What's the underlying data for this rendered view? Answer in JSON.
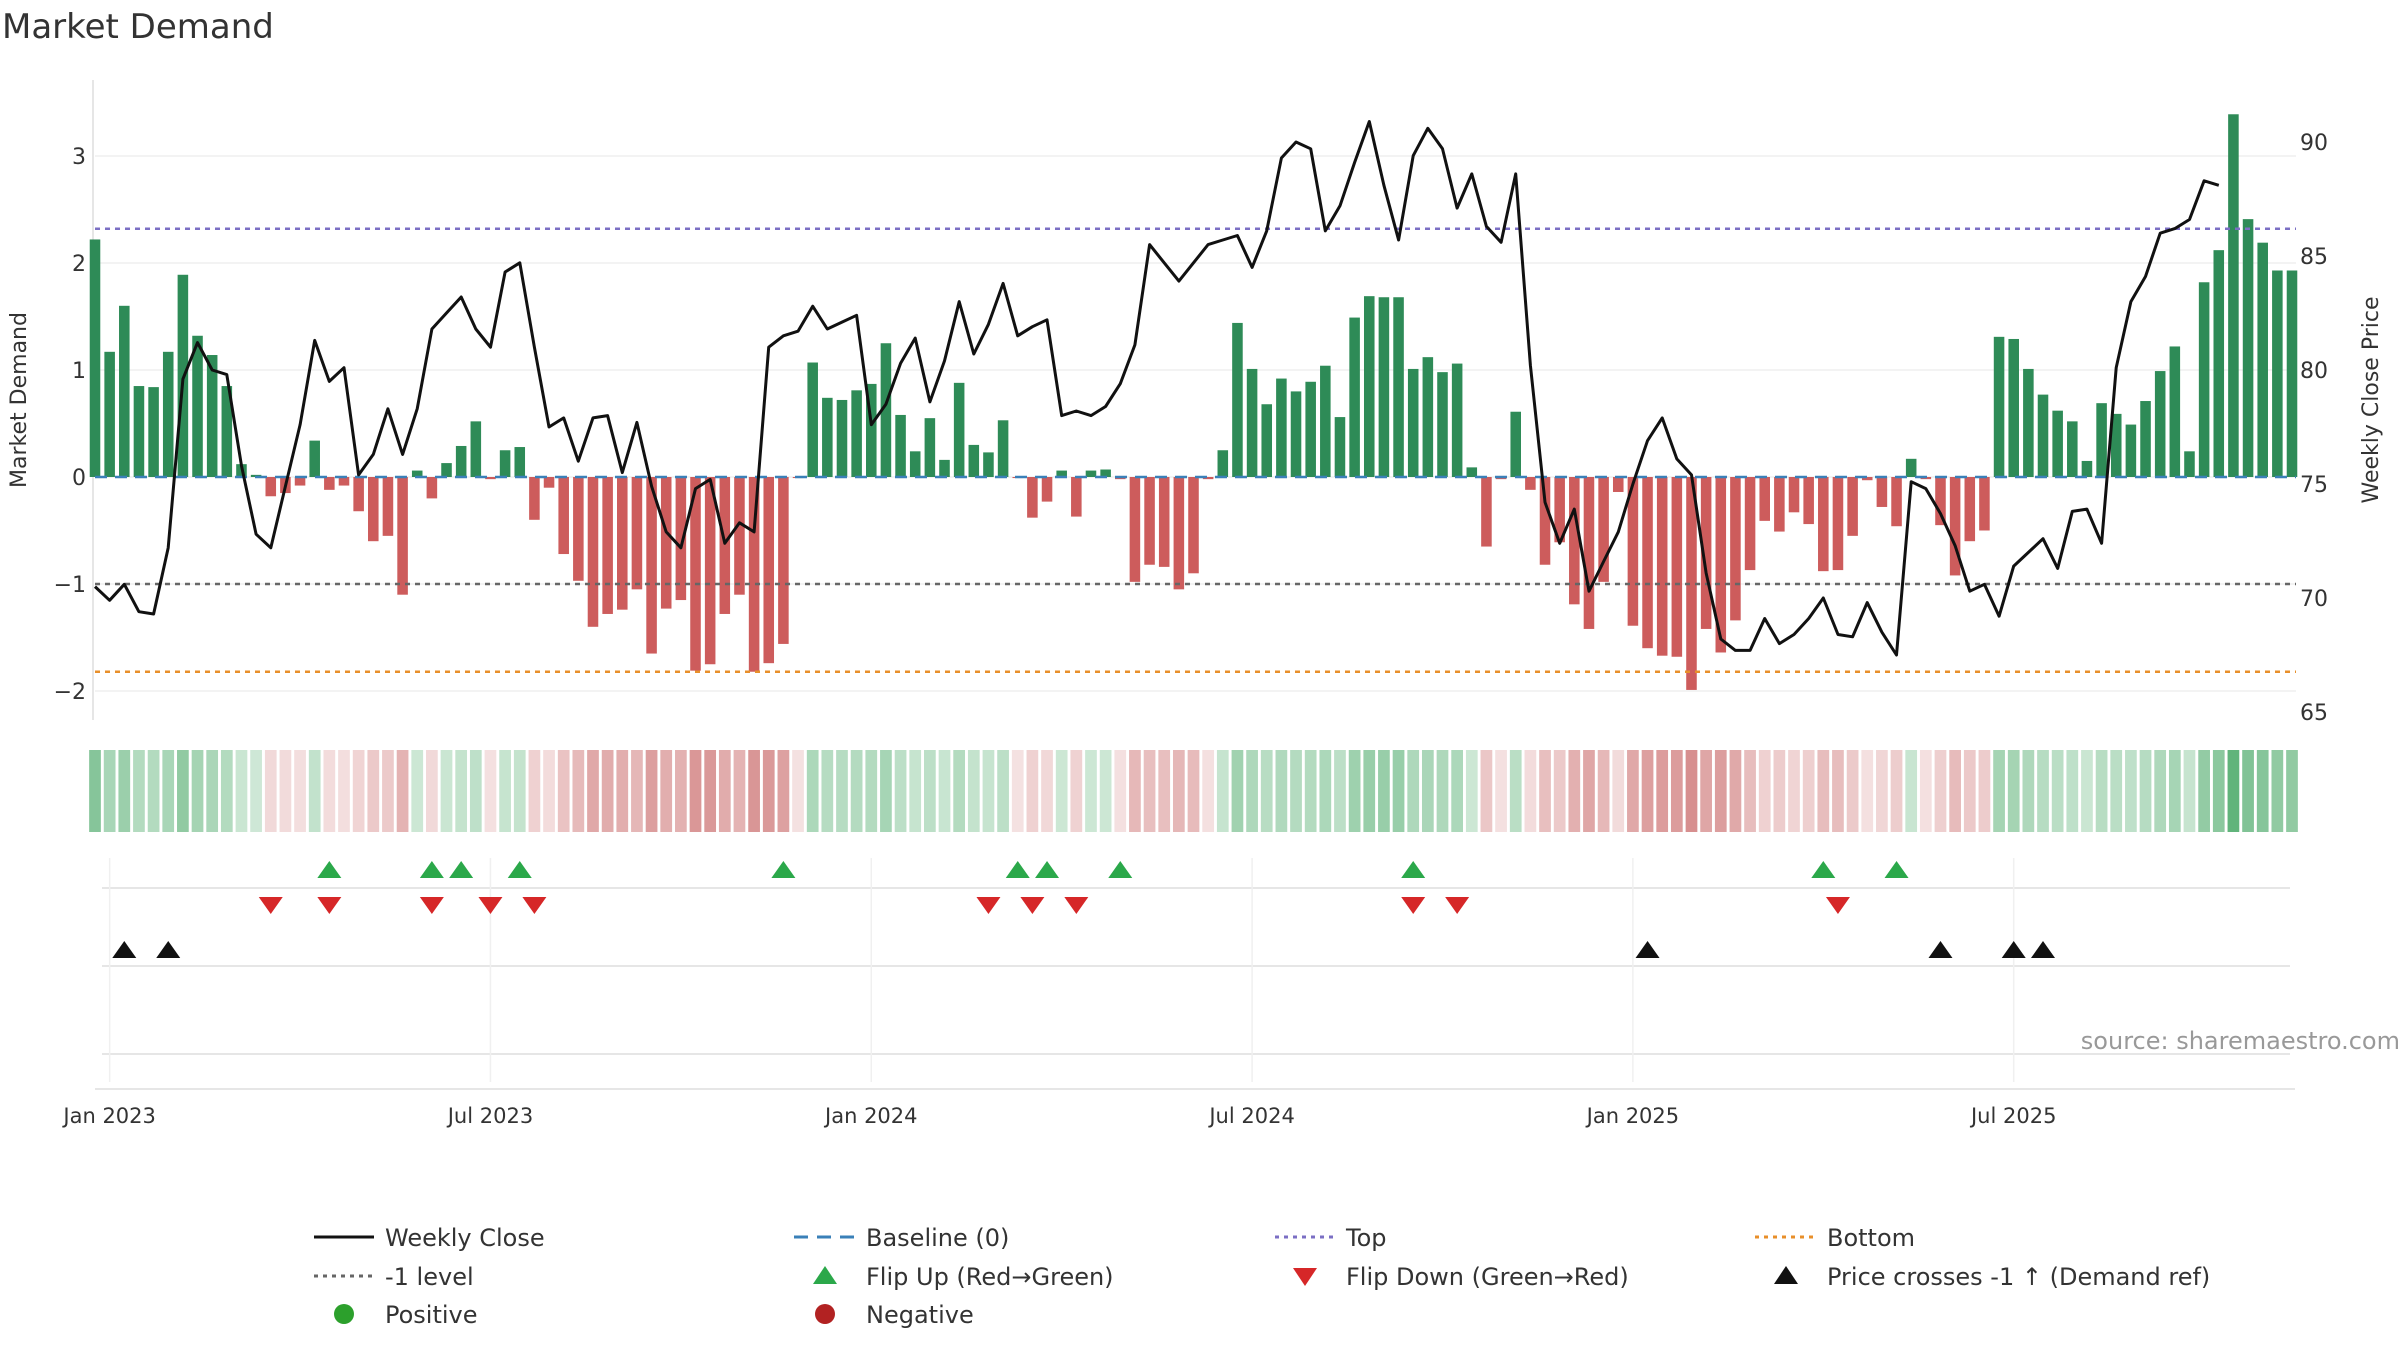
{
  "chart_data": {
    "type": "bar",
    "title": "Market Demand",
    "ylabel_left": "Market Demand",
    "ylabel_right": "Weekly Close Price",
    "ylim_left": [
      -2.3,
      3.5
    ],
    "ylim_right": [
      65,
      92
    ],
    "yticks_left": [
      "−2",
      "−1",
      "0",
      "1",
      "2",
      "3"
    ],
    "yticks_left_values": [
      -2,
      -1,
      0,
      1,
      2,
      3
    ],
    "yticks_right": [
      "65",
      "70",
      "75",
      "80",
      "85",
      "90"
    ],
    "yticks_right_values": [
      65,
      70,
      75,
      80,
      85,
      90
    ],
    "x_ticks": [
      {
        "label": "Jan 2023",
        "week": 1
      },
      {
        "label": "Jul 2023",
        "week": 27
      },
      {
        "label": "Jan 2024",
        "week": 53
      },
      {
        "label": "Jul 2024",
        "week": 79
      },
      {
        "label": "Jan 2025",
        "week": 105
      },
      {
        "label": "Jul 2025",
        "week": 131
      }
    ],
    "series": [
      {
        "name": "Market Demand",
        "type": "bar",
        "values": [
          2.22,
          1.17,
          1.6,
          0.85,
          0.84,
          1.17,
          1.89,
          1.32,
          1.14,
          0.85,
          0.12,
          0.02,
          -0.18,
          -0.15,
          -0.08,
          0.34,
          -0.12,
          -0.08,
          -0.32,
          -0.6,
          -0.55,
          -1.1,
          0.06,
          -0.2,
          0.13,
          0.29,
          0.52,
          -0.02,
          0.25,
          0.28,
          -0.4,
          -0.1,
          -0.72,
          -0.97,
          -1.4,
          -1.28,
          -1.24,
          -1.05,
          -1.65,
          -1.23,
          -1.15,
          -1.81,
          -1.75,
          -1.28,
          -1.1,
          -1.82,
          -1.74,
          -1.56,
          -0.01,
          1.07,
          0.74,
          0.72,
          0.81,
          0.87,
          1.25,
          0.58,
          0.24,
          0.55,
          0.16,
          0.88,
          0.3,
          0.23,
          0.53,
          -0.01,
          -0.38,
          -0.23,
          0.06,
          -0.37,
          0.06,
          0.07,
          -0.02,
          -0.98,
          -0.82,
          -0.84,
          -1.05,
          -0.9,
          -0.02,
          0.25,
          1.44,
          1.01,
          0.68,
          0.92,
          0.8,
          0.89,
          1.04,
          0.56,
          1.49,
          1.69,
          1.68,
          1.68,
          1.01,
          1.12,
          0.98,
          1.06,
          0.09,
          -0.65,
          -0.02,
          0.61,
          -0.12,
          -0.82,
          -0.61,
          -1.19,
          -1.42,
          -0.98,
          -0.14,
          -1.39,
          -1.6,
          -1.67,
          -1.68,
          -1.99,
          -1.42,
          -1.64,
          -1.34,
          -0.87,
          -0.41,
          -0.51,
          -0.33,
          -0.44,
          -0.88,
          -0.87,
          -0.55,
          -0.03,
          -0.28,
          -0.46,
          0.17,
          -0.02,
          -0.45,
          -0.92,
          -0.6,
          -0.5,
          1.31,
          1.29,
          1.01,
          0.77,
          0.62,
          0.52,
          0.15,
          0.69,
          0.59,
          0.49,
          0.71,
          0.99,
          1.22,
          0.24,
          1.82,
          2.12,
          3.39,
          2.41,
          2.19,
          1.93,
          1.93
        ]
      },
      {
        "name": "Weekly Close",
        "type": "line",
        "values": [
          70.5,
          69.9,
          70.6,
          69.4,
          69.3,
          72.2,
          79.6,
          81.2,
          80.0,
          79.8,
          75.8,
          72.8,
          72.2,
          74.9,
          77.6,
          81.3,
          79.5,
          80.1,
          75.4,
          76.3,
          78.3,
          76.3,
          78.3,
          81.8,
          82.5,
          83.2,
          81.8,
          81.0,
          84.3,
          84.7,
          81.0,
          77.5,
          77.9,
          76.0,
          77.9,
          78.0,
          75.5,
          77.7,
          74.9,
          72.9,
          72.2,
          74.8,
          75.2,
          72.4,
          73.3,
          72.9,
          81.0,
          81.5,
          81.7,
          82.8,
          81.8,
          82.1,
          82.4,
          77.6,
          78.5,
          80.3,
          81.4,
          78.6,
          80.4,
          83.0,
          80.7,
          82.0,
          83.8,
          81.5,
          81.9,
          82.2,
          78.0,
          78.2,
          78.0,
          78.4,
          79.4,
          81.1,
          85.5,
          84.7,
          83.9,
          84.7,
          85.5,
          85.7,
          85.9,
          84.5,
          86.1,
          89.3,
          90.0,
          89.7,
          86.1,
          87.2,
          89.1,
          90.9,
          88.1,
          85.7,
          89.4,
          90.6,
          89.7,
          87.1,
          88.6,
          86.3,
          85.6,
          88.6,
          80.2,
          74.2,
          72.4,
          73.9,
          70.3,
          71.6,
          72.9,
          75.0,
          76.9,
          77.9,
          76.1,
          75.4,
          71.1,
          68.2,
          67.7,
          67.7,
          69.1,
          68.0,
          68.4,
          69.1,
          70.0,
          68.4,
          68.3,
          69.8,
          68.5,
          67.5,
          75.1,
          74.8,
          73.7,
          72.3,
          70.3,
          70.6,
          69.2,
          71.4,
          72.0,
          72.6,
          71.3,
          73.8,
          73.9,
          72.4,
          80.1,
          83.0,
          84.1,
          86.0,
          86.2,
          86.6,
          88.3,
          88.1
        ]
      }
    ],
    "reference_lines": [
      {
        "name": "Top",
        "value": 2.32,
        "color": "#7b6fc4"
      },
      {
        "name": "-1 level",
        "value": -1.0,
        "color": "#666666"
      },
      {
        "name": "Bottom",
        "value": -1.82,
        "color": "#e88f2a"
      },
      {
        "name": "Baseline (0)",
        "value": 0,
        "color": "#3a80b8"
      }
    ],
    "flip_up_weeks": [
      16,
      23,
      25,
      29,
      47,
      63,
      65,
      70,
      90,
      118,
      123
    ],
    "flip_down_weeks": [
      12,
      16,
      23,
      27,
      30,
      61,
      64,
      67,
      90,
      93,
      119
    ],
    "price_cross_weeks": [
      2,
      5,
      106,
      126,
      131,
      133
    ],
    "annotation": "source: sharemaestro.com"
  },
  "colors": {
    "positive_bar": "#2e8b57",
    "negative_bar": "#cd5c5c",
    "price_line": "#111111",
    "flip_up": "#2ba84a",
    "flip_down": "#d62728",
    "price_cross": "#111111",
    "positive_dot": "#2ca02c",
    "negative_dot": "#b22222"
  },
  "legend": [
    {
      "label": "Weekly Close",
      "icon": "solid-line"
    },
    {
      "label": "Baseline (0)",
      "icon": "dashed-line"
    },
    {
      "label": "Top",
      "icon": "dotted-line"
    },
    {
      "label": "Bottom",
      "icon": "dotted-line"
    },
    {
      "label": "-1 level",
      "icon": "dotted-line"
    },
    {
      "label": "Flip Up (Red→Green)",
      "icon": "triangle-up"
    },
    {
      "label": "Flip Down (Green→Red)",
      "icon": "triangle-down"
    },
    {
      "label": "Price crosses -1 ↑ (Demand ref)",
      "icon": "triangle-up"
    },
    {
      "label": "Positive",
      "icon": "dot"
    },
    {
      "label": "Negative",
      "icon": "dot"
    }
  ]
}
